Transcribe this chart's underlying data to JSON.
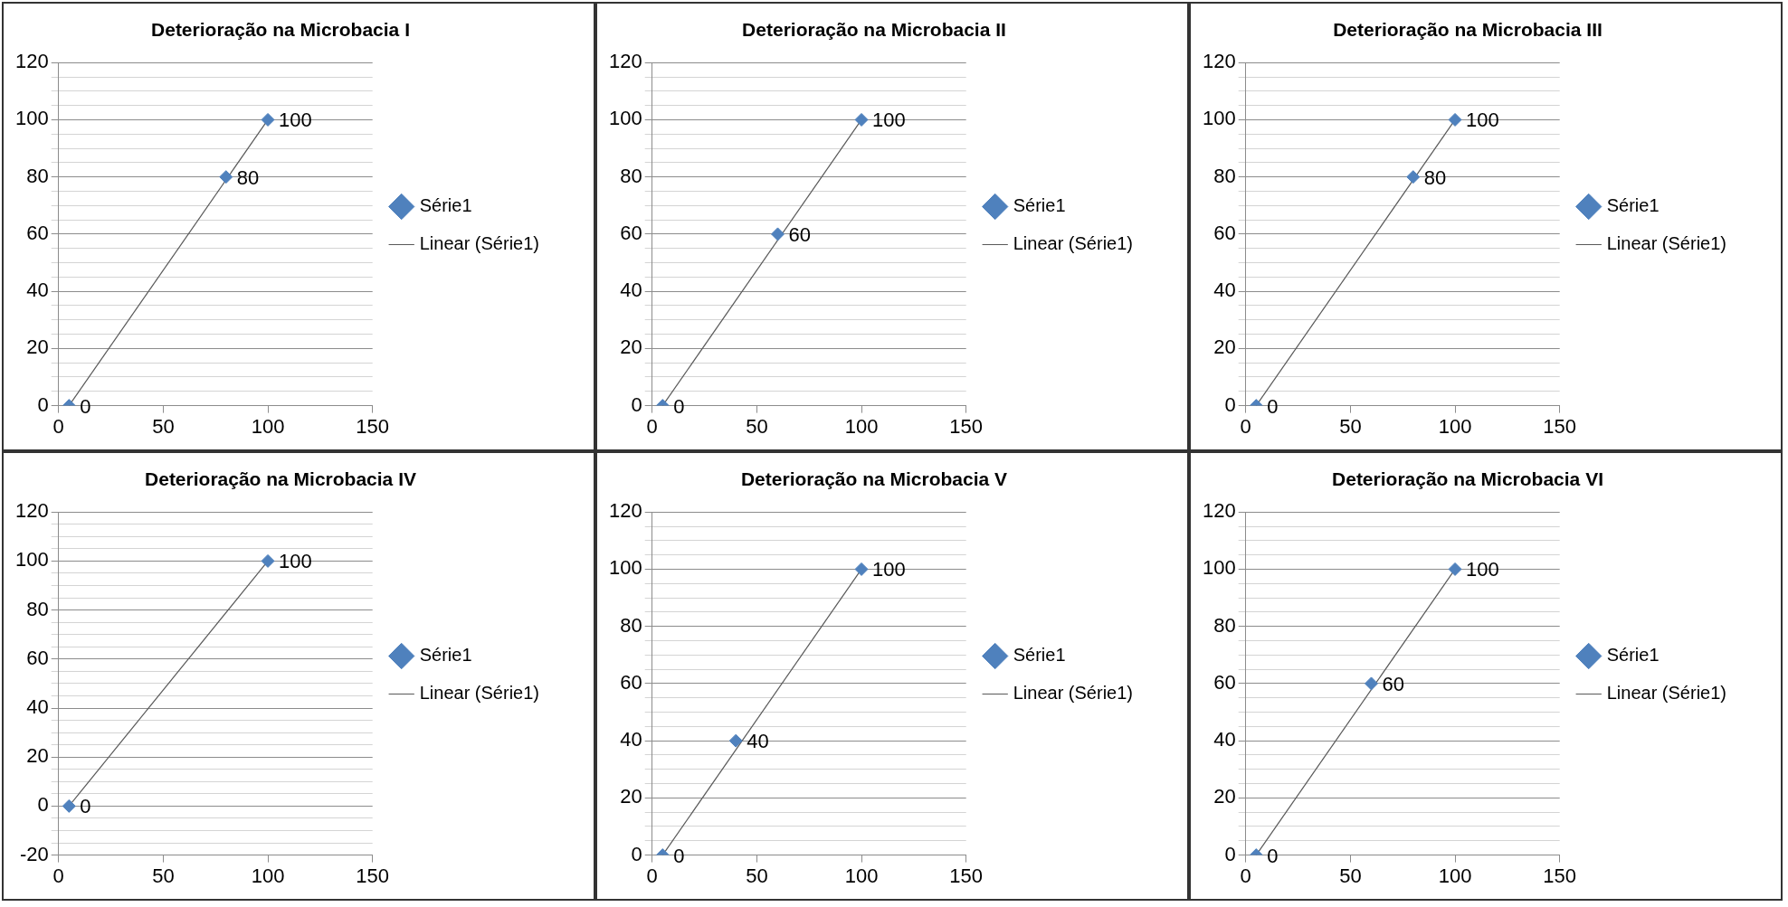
{
  "chart_data": [
    {
      "type": "scatter",
      "title": "Deterioração na Microbacia I",
      "xlim": [
        0,
        150
      ],
      "xticks": [
        0,
        50,
        100,
        150
      ],
      "ylim": [
        0,
        120
      ],
      "yticks": [
        0,
        {
          "value": 5,
          "label": null
        },
        {
          "value": 10,
          "label": null
        },
        {
          "value": 15,
          "label": null
        },
        20,
        {
          "value": 25,
          "label": null
        },
        {
          "value": 30,
          "label": null
        },
        {
          "value": 35,
          "label": null
        },
        40,
        {
          "value": 45,
          "label": null
        },
        {
          "value": 50,
          "label": null
        },
        {
          "value": 55,
          "label": null
        },
        60,
        {
          "value": 65,
          "label": null
        },
        {
          "value": 70,
          "label": null
        },
        {
          "value": 75,
          "label": null
        },
        80,
        {
          "value": 85,
          "label": null
        },
        {
          "value": 90,
          "label": null
        },
        {
          "value": 95,
          "label": null
        },
        100,
        {
          "value": 105,
          "label": null
        },
        {
          "value": 110,
          "label": null
        },
        {
          "value": 115,
          "label": null
        },
        120
      ],
      "grid": "y",
      "legend": "right",
      "series": [
        {
          "name": "Série1",
          "color": "#4f81bd",
          "marker": "diamond",
          "x": [
            5,
            80,
            100
          ],
          "values": [
            0,
            80,
            100
          ],
          "value_labels": [
            "0",
            "80",
            "100"
          ]
        },
        {
          "name": "Linear (Série1)",
          "type": "line",
          "color": "#595959",
          "marker": "none",
          "x": [
            5,
            100
          ],
          "values": [
            0,
            100
          ]
        }
      ]
    },
    {
      "type": "scatter",
      "title": "Deterioração na Microbacia II",
      "xlim": [
        0,
        150
      ],
      "xticks": [
        0,
        50,
        100,
        150
      ],
      "ylim": [
        0,
        120
      ],
      "yticks": [
        0,
        {
          "value": 5,
          "label": null
        },
        {
          "value": 10,
          "label": null
        },
        {
          "value": 15,
          "label": null
        },
        20,
        {
          "value": 25,
          "label": null
        },
        {
          "value": 30,
          "label": null
        },
        {
          "value": 35,
          "label": null
        },
        40,
        {
          "value": 45,
          "label": null
        },
        {
          "value": 50,
          "label": null
        },
        {
          "value": 55,
          "label": null
        },
        60,
        {
          "value": 65,
          "label": null
        },
        {
          "value": 70,
          "label": null
        },
        {
          "value": 75,
          "label": null
        },
        80,
        {
          "value": 85,
          "label": null
        },
        {
          "value": 90,
          "label": null
        },
        {
          "value": 95,
          "label": null
        },
        100,
        {
          "value": 105,
          "label": null
        },
        {
          "value": 110,
          "label": null
        },
        {
          "value": 115,
          "label": null
        },
        120
      ],
      "grid": "y",
      "legend": "right",
      "series": [
        {
          "name": "Série1",
          "color": "#4f81bd",
          "marker": "diamond",
          "x": [
            5,
            60,
            100
          ],
          "values": [
            0,
            60,
            100
          ],
          "value_labels": [
            "0",
            "60",
            "100"
          ]
        },
        {
          "name": "Linear (Série1)",
          "type": "line",
          "color": "#595959",
          "marker": "none",
          "x": [
            5,
            100
          ],
          "values": [
            0,
            100
          ]
        }
      ]
    },
    {
      "type": "scatter",
      "title": "Deterioração na Microbacia III",
      "xlim": [
        0,
        150
      ],
      "xticks": [
        0,
        50,
        100,
        150
      ],
      "ylim": [
        0,
        120
      ],
      "yticks": [
        0,
        {
          "value": 5,
          "label": null
        },
        {
          "value": 10,
          "label": null
        },
        {
          "value": 15,
          "label": null
        },
        20,
        {
          "value": 25,
          "label": null
        },
        {
          "value": 30,
          "label": null
        },
        {
          "value": 35,
          "label": null
        },
        40,
        {
          "value": 45,
          "label": null
        },
        {
          "value": 50,
          "label": null
        },
        {
          "value": 55,
          "label": null
        },
        60,
        {
          "value": 65,
          "label": null
        },
        {
          "value": 70,
          "label": null
        },
        {
          "value": 75,
          "label": null
        },
        80,
        {
          "value": 85,
          "label": null
        },
        {
          "value": 90,
          "label": null
        },
        {
          "value": 95,
          "label": null
        },
        100,
        {
          "value": 105,
          "label": null
        },
        {
          "value": 110,
          "label": null
        },
        {
          "value": 115,
          "label": null
        },
        120
      ],
      "grid": "y",
      "legend": "right",
      "series": [
        {
          "name": "Série1",
          "color": "#4f81bd",
          "marker": "diamond",
          "x": [
            5,
            80,
            100
          ],
          "values": [
            0,
            80,
            100
          ],
          "value_labels": [
            "0",
            "80",
            "100"
          ]
        },
        {
          "name": "Linear (Série1)",
          "type": "line",
          "color": "#595959",
          "marker": "none",
          "x": [
            5,
            100
          ],
          "values": [
            0,
            100
          ]
        }
      ]
    },
    {
      "type": "scatter",
      "title": "Deterioração na Microbacia IV",
      "xlim": [
        0,
        150
      ],
      "xticks": [
        0,
        50,
        100,
        150
      ],
      "ylim": [
        -20,
        120
      ],
      "yticks": [
        -20,
        {
          "value": -15,
          "label": null
        },
        {
          "value": -10,
          "label": null
        },
        {
          "value": -5,
          "label": null
        },
        0,
        {
          "value": 5,
          "label": null
        },
        {
          "value": 10,
          "label": null
        },
        {
          "value": 15,
          "label": null
        },
        20,
        {
          "value": 25,
          "label": null
        },
        {
          "value": 30,
          "label": null
        },
        {
          "value": 35,
          "label": null
        },
        40,
        {
          "value": 45,
          "label": null
        },
        {
          "value": 50,
          "label": null
        },
        {
          "value": 55,
          "label": null
        },
        60,
        {
          "value": 65,
          "label": null
        },
        {
          "value": 70,
          "label": null
        },
        {
          "value": 75,
          "label": null
        },
        80,
        {
          "value": 85,
          "label": null
        },
        {
          "value": 90,
          "label": null
        },
        {
          "value": 95,
          "label": null
        },
        100,
        {
          "value": 105,
          "label": null
        },
        {
          "value": 110,
          "label": null
        },
        {
          "value": 115,
          "label": null
        },
        120
      ],
      "grid": "y",
      "legend": "right",
      "series": [
        {
          "name": "Série1",
          "color": "#4f81bd",
          "marker": "diamond",
          "x": [
            5,
            100
          ],
          "values": [
            0,
            100
          ],
          "value_labels": [
            "0",
            "100"
          ]
        },
        {
          "name": "Linear (Série1)",
          "type": "line",
          "color": "#595959",
          "marker": "none",
          "x": [
            5,
            100
          ],
          "values": [
            0,
            100
          ]
        }
      ]
    },
    {
      "type": "scatter",
      "title": "Deterioração na Microbacia V",
      "xlim": [
        0,
        150
      ],
      "xticks": [
        0,
        50,
        100,
        150
      ],
      "ylim": [
        0,
        120
      ],
      "yticks": [
        0,
        {
          "value": 5,
          "label": null
        },
        {
          "value": 10,
          "label": null
        },
        {
          "value": 15,
          "label": null
        },
        20,
        {
          "value": 25,
          "label": null
        },
        {
          "value": 30,
          "label": null
        },
        {
          "value": 35,
          "label": null
        },
        40,
        {
          "value": 45,
          "label": null
        },
        {
          "value": 50,
          "label": null
        },
        {
          "value": 55,
          "label": null
        },
        60,
        {
          "value": 65,
          "label": null
        },
        {
          "value": 70,
          "label": null
        },
        {
          "value": 75,
          "label": null
        },
        80,
        {
          "value": 85,
          "label": null
        },
        {
          "value": 90,
          "label": null
        },
        {
          "value": 95,
          "label": null
        },
        100,
        {
          "value": 105,
          "label": null
        },
        {
          "value": 110,
          "label": null
        },
        {
          "value": 115,
          "label": null
        },
        120
      ],
      "grid": "y",
      "legend": "right",
      "series": [
        {
          "name": "Série1",
          "color": "#4f81bd",
          "marker": "diamond",
          "x": [
            5,
            40,
            100
          ],
          "values": [
            0,
            40,
            100
          ],
          "value_labels": [
            "0",
            "40",
            "100"
          ]
        },
        {
          "name": "Linear (Série1)",
          "type": "line",
          "color": "#595959",
          "marker": "none",
          "x": [
            5,
            100
          ],
          "values": [
            0,
            100
          ]
        }
      ]
    },
    {
      "type": "scatter",
      "title": "Deterioração na Microbacia VI",
      "xlim": [
        0,
        150
      ],
      "xticks": [
        0,
        50,
        100,
        150
      ],
      "ylim": [
        0,
        120
      ],
      "yticks": [
        0,
        {
          "value": 5,
          "label": null
        },
        {
          "value": 10,
          "label": null
        },
        {
          "value": 15,
          "label": null
        },
        20,
        {
          "value": 25,
          "label": null
        },
        {
          "value": 30,
          "label": null
        },
        {
          "value": 35,
          "label": null
        },
        40,
        {
          "value": 45,
          "label": null
        },
        {
          "value": 50,
          "label": null
        },
        {
          "value": 55,
          "label": null
        },
        60,
        {
          "value": 65,
          "label": null
        },
        {
          "value": 70,
          "label": null
        },
        {
          "value": 75,
          "label": null
        },
        80,
        {
          "value": 85,
          "label": null
        },
        {
          "value": 90,
          "label": null
        },
        {
          "value": 95,
          "label": null
        },
        100,
        {
          "value": 105,
          "label": null
        },
        {
          "value": 110,
          "label": null
        },
        {
          "value": 115,
          "label": null
        },
        120
      ],
      "grid": "y",
      "legend": "right",
      "series": [
        {
          "name": "Série1",
          "color": "#4f81bd",
          "marker": "diamond",
          "x": [
            5,
            60,
            100
          ],
          "values": [
            0,
            60,
            100
          ],
          "value_labels": [
            "0",
            "60",
            "100"
          ]
        },
        {
          "name": "Linear (Série1)",
          "type": "line",
          "color": "#595959",
          "marker": "none",
          "x": [
            5,
            100
          ],
          "values": [
            0,
            100
          ]
        }
      ]
    }
  ]
}
